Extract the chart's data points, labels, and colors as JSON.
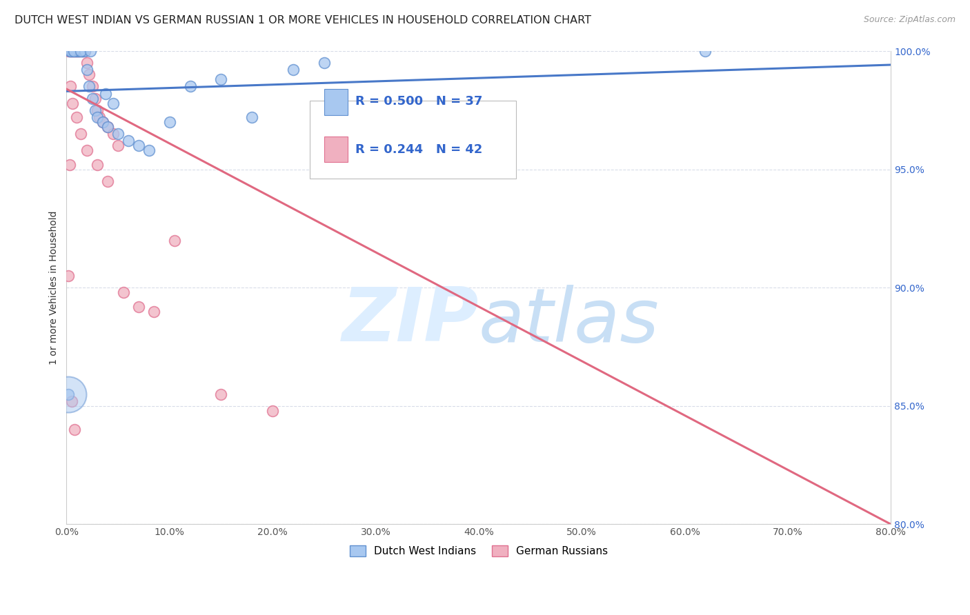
{
  "title": "DUTCH WEST INDIAN VS GERMAN RUSSIAN 1 OR MORE VEHICLES IN HOUSEHOLD CORRELATION CHART",
  "source": "Source: ZipAtlas.com",
  "ylabel": "1 or more Vehicles in Household",
  "xlim": [
    0.0,
    80.0
  ],
  "ylim": [
    80.0,
    100.0
  ],
  "xticks": [
    0.0,
    10.0,
    20.0,
    30.0,
    40.0,
    50.0,
    60.0,
    70.0,
    80.0
  ],
  "yticks_right": [
    80.0,
    85.0,
    90.0,
    95.0,
    100.0
  ],
  "blue_R": 0.5,
  "blue_N": 37,
  "pink_R": 0.244,
  "pink_N": 42,
  "blue_color": "#a8c8f0",
  "pink_color": "#f0b0c0",
  "blue_edge_color": "#6090d0",
  "pink_edge_color": "#e07090",
  "blue_line_color": "#4878c8",
  "pink_line_color": "#e06880",
  "legend_text_color": "#3366cc",
  "watermark_color": "#ddeeff",
  "bg_color": "#ffffff",
  "grid_color": "#d8dce8",
  "title_fontsize": 11.5,
  "tick_fontsize": 10,
  "legend_fontsize": 13,
  "blue_scatter_x": [
    0.3,
    0.5,
    0.6,
    0.8,
    0.9,
    1.0,
    1.1,
    1.2,
    1.3,
    1.5,
    1.6,
    1.8,
    2.0,
    2.2,
    2.5,
    2.8,
    3.0,
    3.5,
    4.0,
    5.0,
    6.0,
    7.0,
    8.0,
    10.0,
    12.0,
    15.0,
    18.0,
    22.0,
    25.0,
    62.0,
    0.4,
    0.7,
    1.4,
    2.3,
    3.8,
    4.5,
    0.2
  ],
  "blue_scatter_y": [
    100.0,
    100.0,
    100.0,
    100.0,
    100.0,
    100.0,
    100.0,
    100.0,
    100.0,
    100.0,
    100.0,
    100.0,
    99.2,
    98.5,
    98.0,
    97.5,
    97.2,
    97.0,
    96.8,
    96.5,
    96.2,
    96.0,
    95.8,
    97.0,
    98.5,
    98.8,
    97.2,
    99.2,
    99.5,
    100.0,
    100.0,
    100.0,
    100.0,
    100.0,
    98.2,
    97.8,
    85.5
  ],
  "pink_scatter_x": [
    0.2,
    0.3,
    0.4,
    0.5,
    0.6,
    0.7,
    0.8,
    0.9,
    1.0,
    1.1,
    1.2,
    1.3,
    1.5,
    1.6,
    1.8,
    2.0,
    2.2,
    2.5,
    2.8,
    3.0,
    3.2,
    3.5,
    4.0,
    4.5,
    5.0,
    0.4,
    0.6,
    1.0,
    1.4,
    2.0,
    3.0,
    4.0,
    5.5,
    7.0,
    8.5,
    10.5,
    15.0,
    20.0,
    0.2,
    0.3,
    0.5,
    0.8
  ],
  "pink_scatter_y": [
    100.0,
    100.0,
    100.0,
    100.0,
    100.0,
    100.0,
    100.0,
    100.0,
    100.0,
    100.0,
    100.0,
    100.0,
    100.0,
    100.0,
    100.0,
    99.5,
    99.0,
    98.5,
    98.0,
    97.5,
    97.2,
    97.0,
    96.8,
    96.5,
    96.0,
    98.5,
    97.8,
    97.2,
    96.5,
    95.8,
    95.2,
    94.5,
    89.8,
    89.2,
    89.0,
    92.0,
    85.5,
    84.8,
    90.5,
    95.2,
    85.2,
    84.0
  ],
  "big_blue_x": 0.2,
  "big_blue_y": 85.5,
  "big_blue_size": 1400,
  "marker_size": 130
}
